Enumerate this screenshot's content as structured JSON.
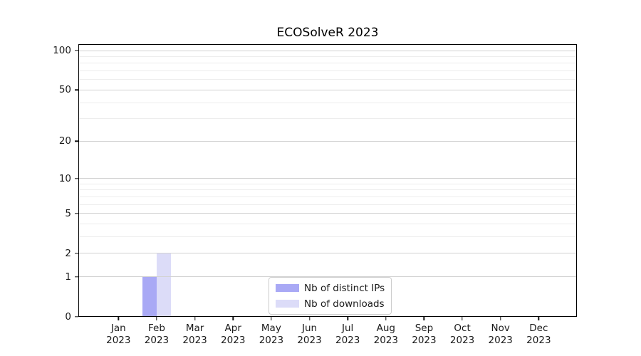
{
  "chart_data": {
    "type": "bar",
    "title": "ECOSolveR 2023",
    "categories": [
      "Jan",
      "Feb",
      "Mar",
      "Apr",
      "May",
      "Jun",
      "Jul",
      "Aug",
      "Sep",
      "Oct",
      "Nov",
      "Dec"
    ],
    "category_year": "2023",
    "series": [
      {
        "name": "Nb of distinct IPs",
        "color": "#a9a9f5",
        "values": [
          0,
          1,
          0,
          0,
          0,
          0,
          0,
          0,
          0,
          0,
          0,
          0
        ]
      },
      {
        "name": "Nb of downloads",
        "color": "#dcdcf8",
        "values": [
          0,
          2,
          0,
          0,
          0,
          0,
          0,
          0,
          0,
          0,
          0,
          0
        ]
      }
    ],
    "yscale": "log1p",
    "ylim": [
      0,
      112
    ],
    "xlim": [
      -1.05,
      12.0
    ],
    "yticks": [
      0,
      1,
      2,
      5,
      10,
      20,
      50,
      100
    ],
    "ytick_labels": [
      "0",
      "1",
      "2",
      "5",
      "10",
      "20",
      "50",
      "100"
    ],
    "yticks_minor": [
      3,
      4,
      6,
      7,
      8,
      9,
      30,
      40,
      60,
      70,
      80,
      90
    ],
    "bar_width": 0.38,
    "grid": true,
    "grid_over_bars": true,
    "legend_position": "lower center",
    "colors": {
      "grid_major": "#d2d2d2",
      "grid_minor": "#ededed",
      "spine": "#000000",
      "text": "#1a1a1a"
    }
  }
}
